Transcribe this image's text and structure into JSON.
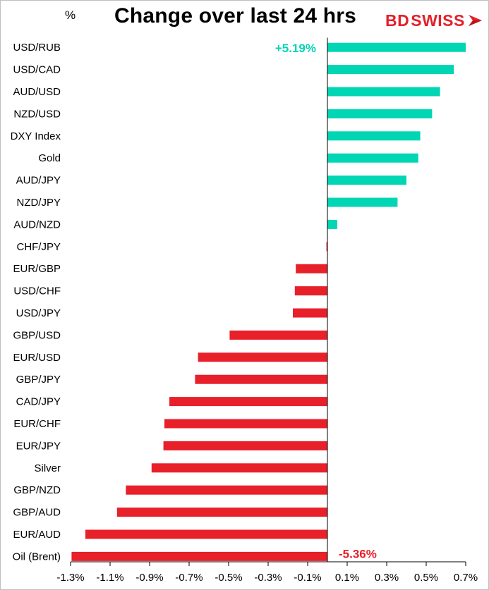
{
  "header": {
    "unit": "%",
    "title": "Change over last 24 hrs",
    "logo": {
      "prefix": "BD",
      "suffix": "SWISS"
    }
  },
  "colors": {
    "positive": "#00d6b4",
    "negative": "#e8202a",
    "axis": "#000000",
    "logo": "#e4202a"
  },
  "chart_data": {
    "type": "bar",
    "orientation": "horizontal",
    "title": "Change over last 24 hrs",
    "ylabel": "%",
    "xlim": [
      -1.3,
      0.7
    ],
    "xticks": [
      -1.3,
      -1.1,
      -0.9,
      -0.7,
      -0.5,
      -0.3,
      -0.1,
      0.1,
      0.3,
      0.5,
      0.7
    ],
    "xtick_labels": [
      "-1.3%",
      "-1.1%",
      "-0.9%",
      "-0.7%",
      "-0.5%",
      "-0.3%",
      "-0.1%",
      "0.1%",
      "0.3%",
      "0.5%",
      "0.7%"
    ],
    "categories": [
      "USD/RUB",
      "USD/CAD",
      "AUD/USD",
      "NZD/USD",
      "DXY Index",
      "Gold",
      "AUD/JPY",
      "NZD/JPY",
      "AUD/NZD",
      "CHF/JPY",
      "EUR/GBP",
      "USD/CHF",
      "USD/JPY",
      "GBP/USD",
      "EUR/USD",
      "GBP/JPY",
      "CAD/JPY",
      "EUR/CHF",
      "EUR/JPY",
      "Silver",
      "GBP/NZD",
      "GBP/AUD",
      "EUR/AUD",
      "Oil (Brent)"
    ],
    "values": [
      0.7,
      0.64,
      0.57,
      0.53,
      0.47,
      0.46,
      0.4,
      0.355,
      0.05,
      -0.005,
      -0.16,
      -0.165,
      -0.175,
      -0.495,
      -0.655,
      -0.67,
      -0.8,
      -0.825,
      -0.83,
      -0.89,
      -1.02,
      -1.065,
      -1.225,
      -1.295
    ],
    "annotations": [
      {
        "category": "USD/RUB",
        "text": "+5.19%"
      },
      {
        "category": "Oil (Brent)",
        "text": "-5.36%"
      }
    ],
    "grid": false,
    "legend": "none"
  }
}
